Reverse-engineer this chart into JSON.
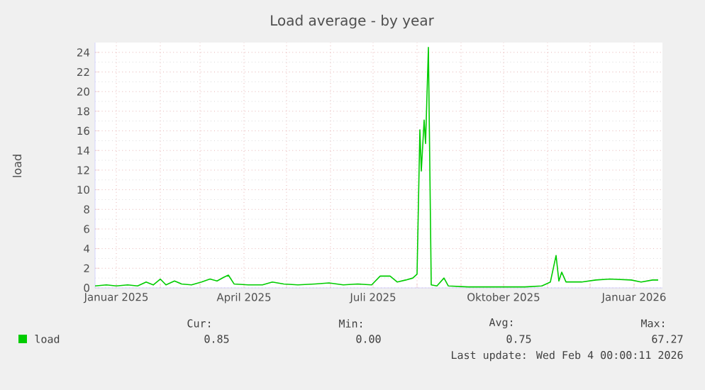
{
  "chart_data": {
    "type": "line",
    "title": "Load average - by year",
    "ylabel": "load",
    "xlim": [
      "2024-12-17",
      "2026-01-21"
    ],
    "ylim": [
      0,
      25
    ],
    "xticks": [
      {
        "value": "2025-01-01",
        "label": "Januar 2025"
      },
      {
        "value": "2025-02-01",
        "label": null
      },
      {
        "value": "2025-03-01",
        "label": null
      },
      {
        "value": "2025-04-01",
        "label": "April 2025"
      },
      {
        "value": "2025-05-01",
        "label": null
      },
      {
        "value": "2025-06-01",
        "label": null
      },
      {
        "value": "2025-07-01",
        "label": "Juli 2025"
      },
      {
        "value": "2025-08-01",
        "label": null
      },
      {
        "value": "2025-09-01",
        "label": null
      },
      {
        "value": "2025-10-01",
        "label": "Oktober 2025"
      },
      {
        "value": "2025-11-01",
        "label": null
      },
      {
        "value": "2025-12-01",
        "label": null
      },
      {
        "value": "2026-01-01",
        "label": "Januar 2026"
      }
    ],
    "yticks": [
      0,
      2,
      4,
      6,
      8,
      10,
      12,
      14,
      16,
      18,
      20,
      22,
      24
    ],
    "grid": true,
    "legend": "bottom left",
    "x": [
      "2024-12-17",
      "2024-12-25",
      "2025-01-01",
      "2025-01-09",
      "2025-01-16",
      "2025-01-22",
      "2025-01-27",
      "2025-02-01",
      "2025-02-05",
      "2025-02-11",
      "2025-02-16",
      "2025-02-23",
      "2025-03-02",
      "2025-03-08",
      "2025-03-13",
      "2025-03-18",
      "2025-03-21",
      "2025-03-25",
      "2025-04-04",
      "2025-04-14",
      "2025-04-21",
      "2025-04-29",
      "2025-05-09",
      "2025-05-21",
      "2025-05-31",
      "2025-06-10",
      "2025-06-20",
      "2025-06-30",
      "2025-07-06",
      "2025-07-13",
      "2025-07-18",
      "2025-07-24",
      "2025-07-29",
      "2025-08-01",
      "2025-08-03",
      "2025-08-04",
      "2025-08-06",
      "2025-08-07",
      "2025-08-09",
      "2025-08-11",
      "2025-08-15",
      "2025-08-20",
      "2025-08-23",
      "2025-09-06",
      "2025-09-26",
      "2025-10-16",
      "2025-10-28",
      "2025-11-03",
      "2025-11-07",
      "2025-11-09",
      "2025-11-11",
      "2025-11-14",
      "2025-11-25",
      "2025-12-05",
      "2025-12-15",
      "2025-12-30",
      "2026-01-06",
      "2026-01-14",
      "2026-01-18"
    ],
    "series": [
      {
        "name": "load",
        "color": "#00cc00",
        "values": [
          0.2,
          0.3,
          0.2,
          0.3,
          0.2,
          0.6,
          0.3,
          0.9,
          0.3,
          0.7,
          0.4,
          0.3,
          0.6,
          0.9,
          0.7,
          1.1,
          1.3,
          0.4,
          0.3,
          0.3,
          0.6,
          0.4,
          0.3,
          0.4,
          0.5,
          0.3,
          0.4,
          0.3,
          1.2,
          1.2,
          0.6,
          0.8,
          1.0,
          1.4,
          16.1,
          11.9,
          17.1,
          14.7,
          24.5,
          0.3,
          0.2,
          1.0,
          0.2,
          0.1,
          0.1,
          0.1,
          0.2,
          0.6,
          3.3,
          0.7,
          1.6,
          0.6,
          0.6,
          0.8,
          0.9,
          0.8,
          0.6,
          0.8,
          0.8
        ]
      }
    ],
    "annotations": [
      "Cur:",
      "Min:",
      "Avg:",
      "Max:",
      "0.85",
      "0.00",
      "0.75",
      "67.27",
      "Last update: Wed Feb  4 00:00:11 2026"
    ]
  }
}
